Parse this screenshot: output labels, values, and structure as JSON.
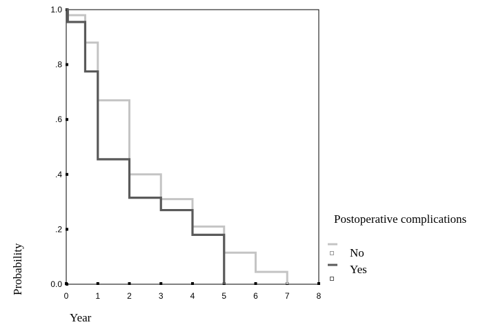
{
  "chart_data": {
    "type": "line",
    "step": true,
    "xlabel": "Year",
    "ylabel": "Probability",
    "xlim": [
      0,
      8
    ],
    "ylim": [
      0,
      1
    ],
    "x_ticks": [
      "0",
      "1",
      "2",
      "3",
      "4",
      "5",
      "6",
      "7",
      "8"
    ],
    "y_ticks": [
      "0.0",
      ".2",
      ".4",
      ".6",
      ".8",
      "1.0"
    ],
    "grid": false,
    "legend": {
      "title": "Postoperative complications",
      "placement": "right",
      "entries": [
        "No",
        "Yes"
      ]
    },
    "series": [
      {
        "name": "No",
        "color": "#c4c4c4",
        "points": [
          [
            0,
            1.0
          ],
          [
            0.05,
            0.98
          ],
          [
            0.6,
            0.88
          ],
          [
            1.0,
            0.67
          ],
          [
            2.0,
            0.4
          ],
          [
            3.0,
            0.31
          ],
          [
            4.0,
            0.21
          ],
          [
            5.0,
            0.115
          ],
          [
            6.0,
            0.045
          ],
          [
            7.0,
            0.0
          ]
        ]
      },
      {
        "name": "Yes",
        "color": "#5a5a5a",
        "points": [
          [
            0,
            1.0
          ],
          [
            0.05,
            0.955
          ],
          [
            0.6,
            0.775
          ],
          [
            1.0,
            0.455
          ],
          [
            2.0,
            0.315
          ],
          [
            3.0,
            0.27
          ],
          [
            4.0,
            0.18
          ],
          [
            5.0,
            0.0
          ]
        ]
      }
    ]
  }
}
